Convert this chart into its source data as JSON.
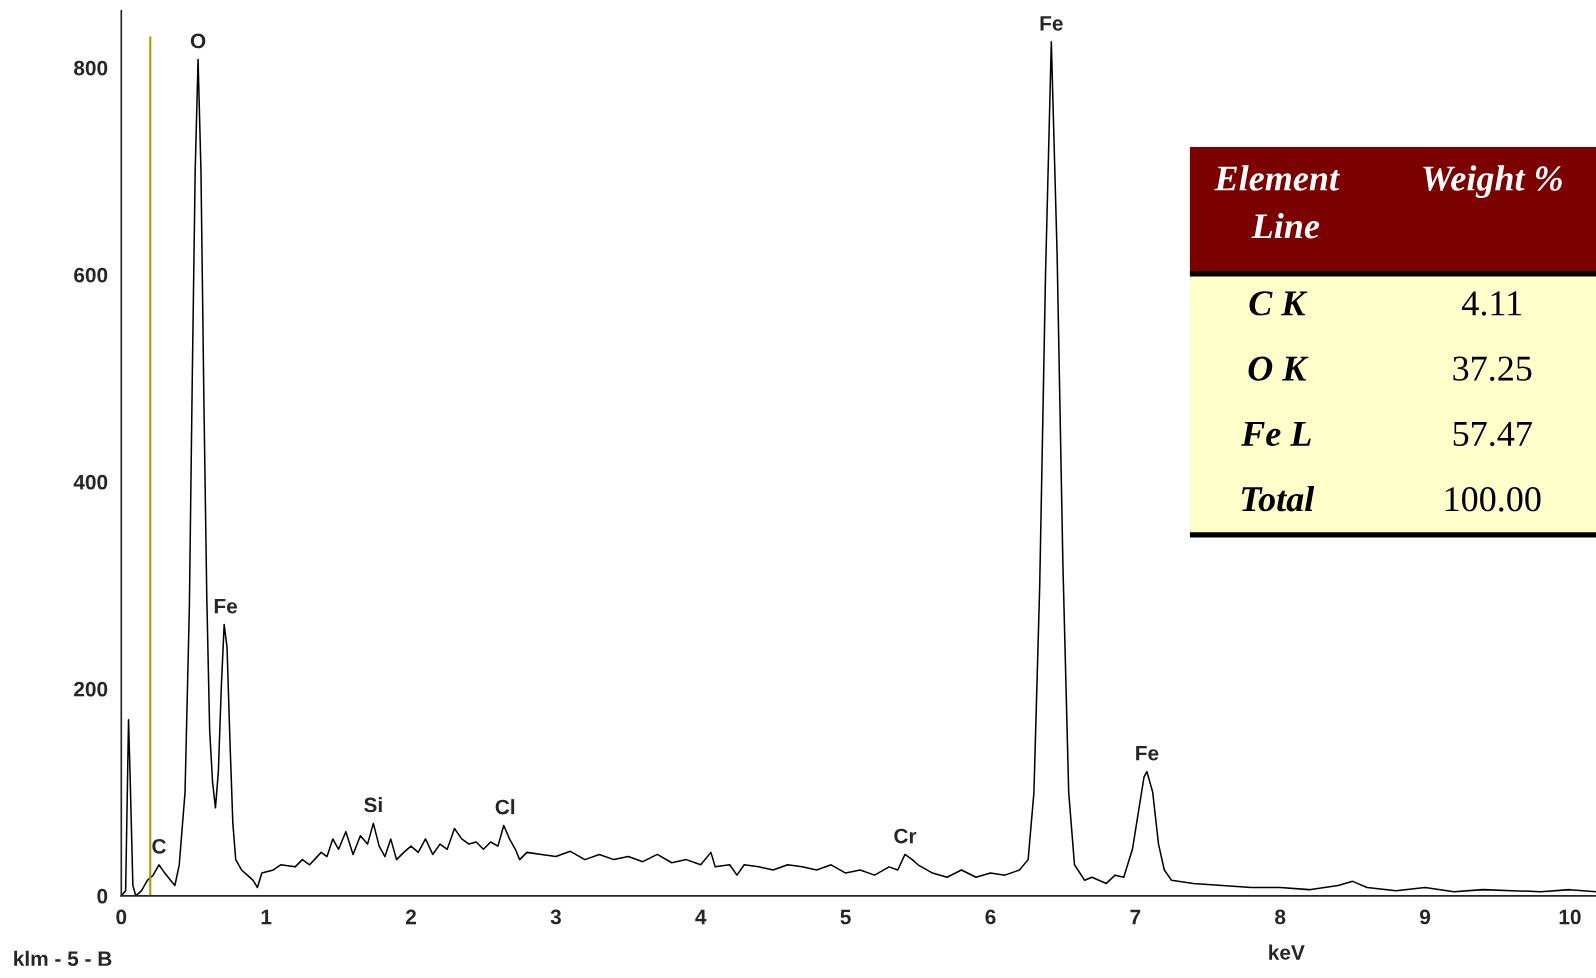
{
  "chart_data": [
    {
      "type": "line",
      "xlabel": "keV",
      "xlim": [
        0,
        10.18
      ],
      "ylim": [
        0,
        855
      ],
      "xticks": [
        0,
        1,
        2,
        3,
        4,
        5,
        6,
        7,
        8,
        9,
        10
      ],
      "yticks": [
        0,
        200,
        400,
        600,
        800
      ],
      "grid": false,
      "marker": "none",
      "line_style": "solid",
      "ref_lines": [
        {
          "axis": "x",
          "value": 0.2,
          "color": "#a0a000"
        }
      ],
      "annotations": [
        {
          "text": "O",
          "x": 0.53,
          "y": 808
        },
        {
          "text": "Fe",
          "x": 0.72,
          "y": 262
        },
        {
          "text": "C",
          "x": 0.26,
          "y": 30
        },
        {
          "text": "Si",
          "x": 1.74,
          "y": 70
        },
        {
          "text": "Cl",
          "x": 2.65,
          "y": 68
        },
        {
          "text": "Cr",
          "x": 5.41,
          "y": 40
        },
        {
          "text": "Fe",
          "x": 6.42,
          "y": 825
        },
        {
          "text": "Fe",
          "x": 7.08,
          "y": 120
        },
        "klm - 5 - B"
      ],
      "series": [
        {
          "color": "#000000",
          "x": [
            0,
            0.03,
            0.05,
            0.06,
            0.08,
            0.1,
            0.14,
            0.18,
            0.22,
            0.26,
            0.3,
            0.34,
            0.37,
            0.4,
            0.44,
            0.47,
            0.49,
            0.51,
            0.53,
            0.55,
            0.57,
            0.59,
            0.61,
            0.63,
            0.65,
            0.67,
            0.69,
            0.71,
            0.73,
            0.75,
            0.77,
            0.79,
            0.83,
            0.87,
            0.91,
            0.94,
            0.97,
            1.05,
            1.1,
            1.2,
            1.25,
            1.3,
            1.38,
            1.42,
            1.46,
            1.5,
            1.55,
            1.6,
            1.65,
            1.7,
            1.74,
            1.78,
            1.82,
            1.86,
            1.9,
            1.95,
            2.0,
            2.05,
            2.1,
            2.15,
            2.2,
            2.25,
            2.3,
            2.35,
            2.4,
            2.45,
            2.5,
            2.55,
            2.6,
            2.64,
            2.68,
            2.72,
            2.75,
            2.8,
            2.9,
            3.0,
            3.1,
            3.2,
            3.3,
            3.4,
            3.5,
            3.6,
            3.7,
            3.8,
            3.9,
            4.0,
            4.07,
            4.1,
            4.2,
            4.25,
            4.3,
            4.4,
            4.5,
            4.6,
            4.7,
            4.8,
            4.9,
            5.0,
            5.1,
            5.2,
            5.3,
            5.36,
            5.41,
            5.46,
            5.5,
            5.6,
            5.7,
            5.8,
            5.9,
            6.0,
            6.1,
            6.2,
            6.26,
            6.3,
            6.34,
            6.38,
            6.42,
            6.46,
            6.5,
            6.54,
            6.58,
            6.65,
            6.7,
            6.8,
            6.86,
            6.92,
            6.98,
            7.02,
            7.06,
            7.08,
            7.12,
            7.16,
            7.2,
            7.25,
            7.4,
            7.6,
            7.8,
            8.0,
            8.2,
            8.4,
            8.5,
            8.6,
            8.8,
            9.0,
            9.2,
            9.4,
            9.6,
            9.8,
            10.0,
            10.18
          ],
          "values": [
            0,
            5,
            170,
            120,
            10,
            0,
            5,
            15,
            20,
            30,
            22,
            15,
            10,
            30,
            100,
            280,
            500,
            700,
            808,
            700,
            480,
            290,
            160,
            110,
            85,
            120,
            200,
            262,
            240,
            150,
            70,
            35,
            25,
            20,
            15,
            8,
            22,
            25,
            30,
            28,
            35,
            30,
            42,
            38,
            55,
            45,
            62,
            40,
            58,
            50,
            70,
            48,
            38,
            55,
            35,
            42,
            48,
            42,
            55,
            40,
            50,
            45,
            65,
            55,
            50,
            52,
            45,
            52,
            48,
            68,
            55,
            45,
            35,
            42,
            40,
            38,
            43,
            35,
            40,
            35,
            38,
            33,
            40,
            32,
            35,
            30,
            42,
            28,
            30,
            20,
            30,
            28,
            25,
            30,
            28,
            25,
            30,
            22,
            25,
            20,
            28,
            25,
            40,
            35,
            30,
            22,
            18,
            25,
            18,
            22,
            20,
            25,
            35,
            100,
            300,
            600,
            825,
            620,
            320,
            100,
            30,
            15,
            18,
            12,
            20,
            18,
            45,
            80,
            115,
            120,
            100,
            50,
            25,
            15,
            12,
            10,
            8,
            8,
            6,
            10,
            14,
            8,
            5,
            8,
            4,
            6,
            5,
            4,
            6,
            4
          ]
        }
      ]
    },
    {
      "type": "other",
      "annotations": [
        "Element Line",
        "Weight %",
        "C K",
        "4.11",
        "O K",
        "37.25",
        "Fe L",
        "57.47",
        "Total",
        "100.00"
      ]
    }
  ]
}
